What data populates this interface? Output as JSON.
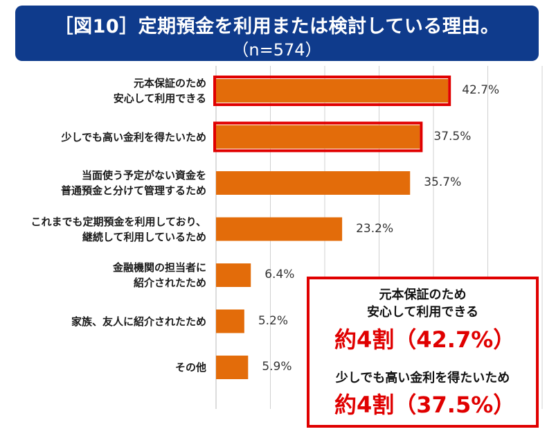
{
  "header": {
    "title": "［図10］定期預金を利用または検討している理由。",
    "subtitle": "（n=574）"
  },
  "colors": {
    "header_bg": "#0f3b8c",
    "bar": "#e36c0a",
    "highlight": "#e00000",
    "grid": "#d0d0d0"
  },
  "chart_data": {
    "type": "bar",
    "orientation": "horizontal",
    "categories": [
      "元本保証のため\n安心して利用できる",
      "少しでも高い金利を得たいため",
      "当面使う予定がない資金を\n普通預金と分けて管理するため",
      "これまでも定期預金を利用しており、\n継続して利用しているため",
      "金融機関の担当者に\n紹介されたため",
      "家族、友人に紹介されたため",
      "その他"
    ],
    "values": [
      42.7,
      37.5,
      35.7,
      23.2,
      6.4,
      5.2,
      5.9
    ],
    "value_labels": [
      "42.7%",
      "37.5%",
      "35.7%",
      "23.2%",
      "6.4%",
      "5.2%",
      "5.9%"
    ],
    "highlighted": [
      true,
      true,
      false,
      false,
      false,
      false,
      false
    ],
    "xlim": [
      0,
      60
    ],
    "grid": true
  },
  "callout": {
    "items": [
      {
        "label": "元本保証のため\n安心して利用できる",
        "value": "約4割（42.7%）"
      },
      {
        "label": "少しでも高い金利を得たいため",
        "value": "約4割（37.5%）"
      }
    ]
  }
}
